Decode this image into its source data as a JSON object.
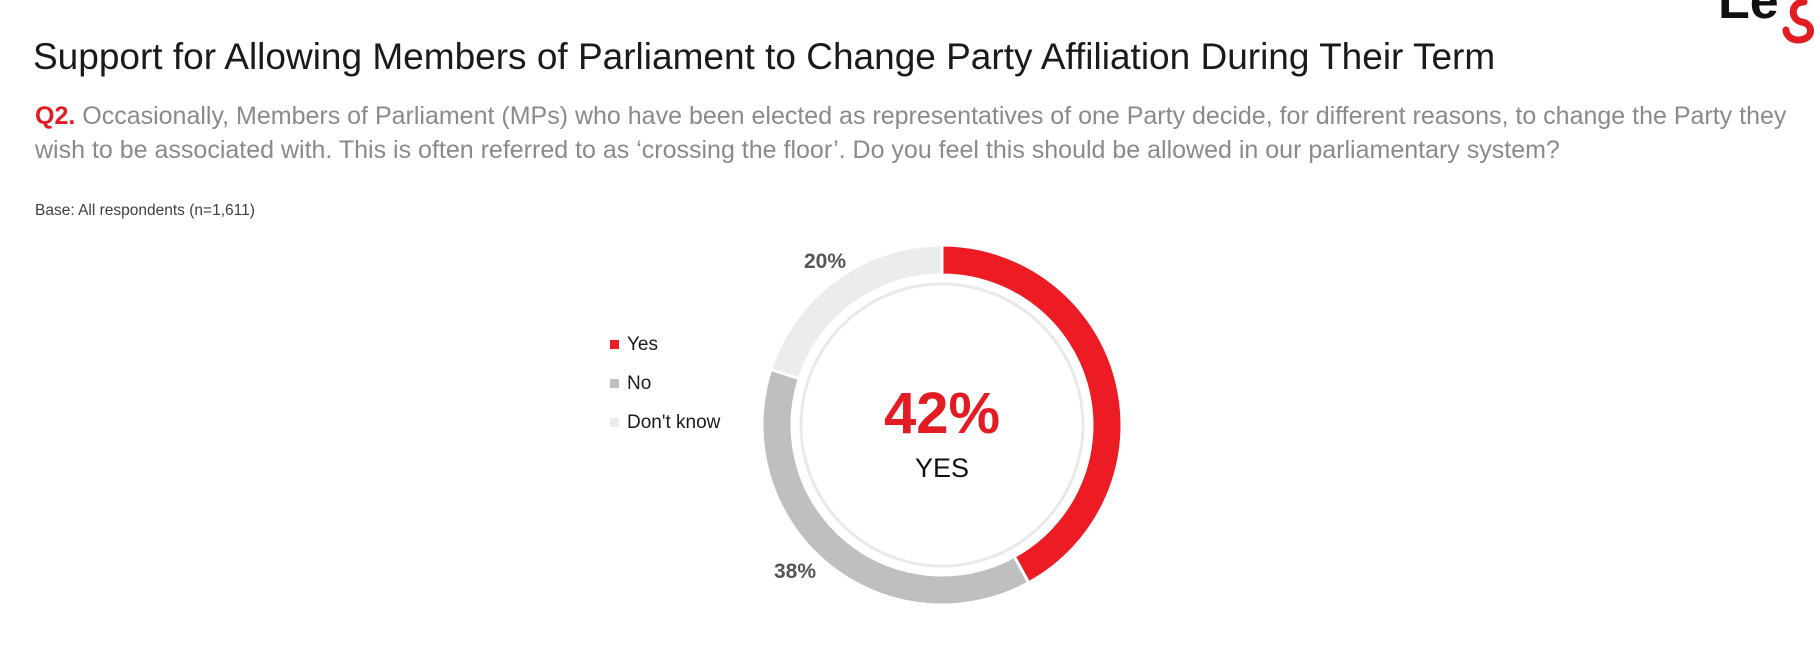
{
  "header": {
    "title": "Support for Allowing Members of Parliament to Change Party Affiliation During Their Term",
    "question_label": "Q2.",
    "question_text": "Occasionally, Members of Parliament (MPs) who have been elected as representatives of one Party decide, for different reasons, to change the Party they wish to be associated with. This is often referred to as ‘crossing the floor’. Do you feel this should be allowed in our parliamentary system?",
    "base_note": "Base: All respondents (n=1,611)"
  },
  "colors": {
    "accent": "#e31b23",
    "yes": "#ed1c24",
    "no": "#bfbfbf",
    "dont_know": "#ececec",
    "logo_mark": "#e31b23"
  },
  "logo": {
    "icon": "brand-logo-mark"
  },
  "chart_data": {
    "type": "pie",
    "style": "donut",
    "categories": [
      "Yes",
      "No",
      "Don't know"
    ],
    "values": [
      42,
      38,
      20
    ],
    "data_labels": [
      "",
      "38%",
      "20%"
    ],
    "center_value": "42%",
    "center_caption": "YES",
    "legend": {
      "placement": "left",
      "entries": [
        "Yes",
        "No",
        "Don't know"
      ]
    }
  }
}
